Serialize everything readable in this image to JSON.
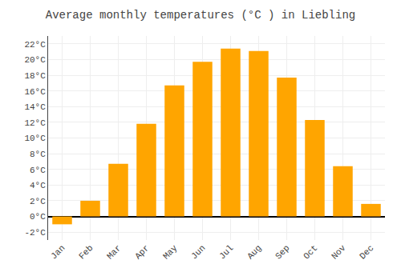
{
  "chart_data": {
    "type": "bar",
    "title": "Average monthly temperatures (°C ) in Liebling",
    "categories": [
      "Jan",
      "Feb",
      "Mar",
      "Apr",
      "May",
      "Jun",
      "Jul",
      "Aug",
      "Sep",
      "Oct",
      "Nov",
      "Dec"
    ],
    "values": [
      -1.0,
      2.0,
      6.7,
      11.8,
      16.7,
      19.7,
      21.4,
      21.1,
      17.7,
      12.3,
      6.4,
      1.6
    ],
    "color": "#FFA500",
    "ylim": [
      -3,
      23
    ],
    "yticks": [
      {
        "value": -2,
        "label": "-2°C"
      },
      {
        "value": 0,
        "label": "0°C"
      },
      {
        "value": 2,
        "label": "2°C"
      },
      {
        "value": 4,
        "label": "4°C"
      },
      {
        "value": 6,
        "label": "6°C"
      },
      {
        "value": 8,
        "label": "8°C"
      },
      {
        "value": 10,
        "label": "10°C"
      },
      {
        "value": 12,
        "label": "12°C"
      },
      {
        "value": 14,
        "label": "14°C"
      },
      {
        "value": 16,
        "label": "16°C"
      },
      {
        "value": 18,
        "label": "18°C"
      },
      {
        "value": 20,
        "label": "20°C"
      },
      {
        "value": 22,
        "label": "22°C"
      }
    ],
    "grid": true
  }
}
